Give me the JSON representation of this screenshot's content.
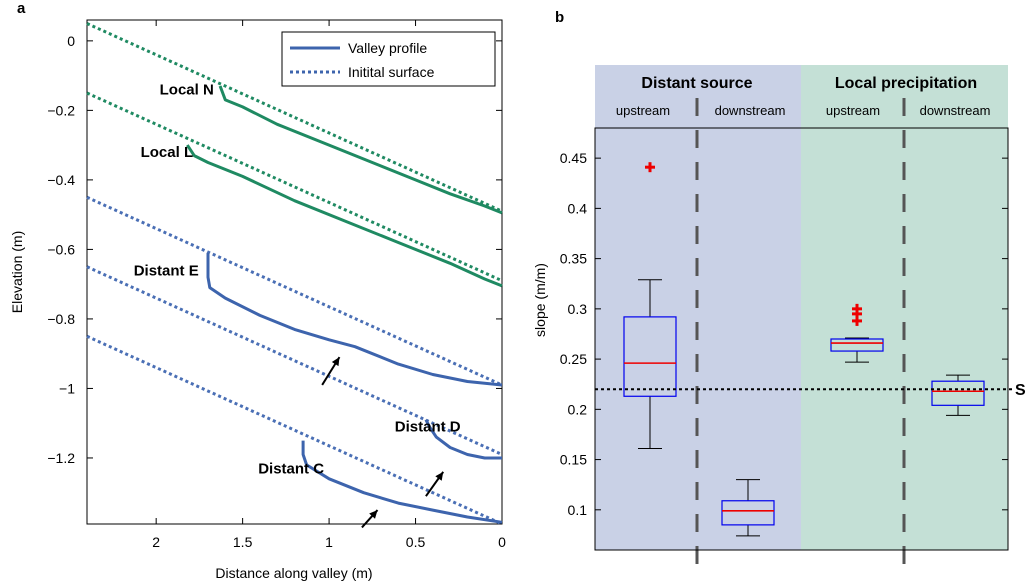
{
  "chart_data": [
    {
      "panel": "a",
      "type": "line",
      "xlabel": "Distance along valley (m)",
      "ylabel": "Elevation (m)",
      "xlim": [
        2.4,
        0
      ],
      "ylim": [
        -1.39,
        0.06
      ],
      "x_reversed": true,
      "xticks": [
        2,
        1.5,
        1,
        0.5,
        0
      ],
      "xtick_labels": [
        "2",
        "1.5",
        "1",
        "0.5",
        "0"
      ],
      "yticks": [
        0,
        -0.2,
        -0.4,
        -0.6,
        -0.8,
        -1,
        -1.2
      ],
      "ytick_labels": [
        "0",
        "−0.2",
        "−0.4",
        "−0.6",
        "−0.8",
        "−1",
        "−1.2"
      ],
      "legend": {
        "placement": "top-right",
        "entries": [
          {
            "label": "Valley profile",
            "style": "solid"
          },
          {
            "label": "Initital surface",
            "style": "dotted"
          }
        ]
      },
      "series": [
        {
          "name": "Local N",
          "kind": "initial",
          "color": "#1f8a62",
          "x": [
            2.4,
            0
          ],
          "y": [
            0.05,
            -0.49
          ]
        },
        {
          "name": "Local N",
          "kind": "profile",
          "color": "#1f8a62",
          "x": [
            1.63,
            1.6,
            1.5,
            1.3,
            1.0,
            0.7,
            0.5,
            0.3,
            0.1,
            0
          ],
          "y": [
            -0.13,
            -0.17,
            -0.19,
            -0.24,
            -0.3,
            -0.36,
            -0.4,
            -0.44,
            -0.475,
            -0.495
          ]
        },
        {
          "name": "Local L",
          "kind": "initial",
          "color": "#1f8a62",
          "x": [
            2.4,
            0
          ],
          "y": [
            -0.15,
            -0.69
          ]
        },
        {
          "name": "Local L",
          "kind": "profile",
          "color": "#1f8a62",
          "x": [
            1.82,
            1.78,
            1.7,
            1.5,
            1.2,
            0.9,
            0.6,
            0.3,
            0.1,
            0
          ],
          "y": [
            -0.3,
            -0.33,
            -0.35,
            -0.39,
            -0.46,
            -0.52,
            -0.58,
            -0.64,
            -0.685,
            -0.705
          ]
        },
        {
          "name": "Distant E",
          "kind": "initial",
          "color": "#4a6fb5",
          "x": [
            2.4,
            0
          ],
          "y": [
            -0.45,
            -0.99
          ]
        },
        {
          "name": "Distant E",
          "kind": "profile",
          "color": "#3d64ad",
          "x": [
            1.7,
            1.7,
            1.69,
            1.6,
            1.4,
            1.2,
            1.0,
            0.85,
            0.8,
            0.6,
            0.4,
            0.2,
            0
          ],
          "y": [
            -0.61,
            -0.68,
            -0.71,
            -0.74,
            -0.79,
            -0.83,
            -0.86,
            -0.88,
            -0.89,
            -0.93,
            -0.96,
            -0.98,
            -0.99
          ]
        },
        {
          "name": "Distant D",
          "kind": "initial",
          "color": "#4a6fb5",
          "x": [
            2.4,
            0
          ],
          "y": [
            -0.65,
            -1.19
          ]
        },
        {
          "name": "Distant D",
          "kind": "profile",
          "color": "#3d64ad",
          "x": [
            0.44,
            0.42,
            0.38,
            0.3,
            0.2,
            0.1,
            0
          ],
          "y": [
            -1.09,
            -1.11,
            -1.14,
            -1.17,
            -1.19,
            -1.2,
            -1.2
          ]
        },
        {
          "name": "Distant C",
          "kind": "initial",
          "color": "#4a6fb5",
          "x": [
            2.4,
            0
          ],
          "y": [
            -0.85,
            -1.39
          ]
        },
        {
          "name": "Distant C",
          "kind": "profile",
          "color": "#3d64ad",
          "x": [
            1.15,
            1.15,
            1.13,
            1.0,
            0.8,
            0.6,
            0.4,
            0.2,
            0
          ],
          "y": [
            -1.15,
            -1.19,
            -1.22,
            -1.26,
            -1.3,
            -1.33,
            -1.35,
            -1.37,
            -1.385
          ]
        }
      ],
      "curve_labels": [
        {
          "text": "Local N",
          "x": 1.98,
          "y": -0.14
        },
        {
          "text": "Local L",
          "x": 2.09,
          "y": -0.32
        },
        {
          "text": "Distant E",
          "x": 2.13,
          "y": -0.66
        },
        {
          "text": "Distant D",
          "x": 0.62,
          "y": -1.11
        },
        {
          "text": "Distant C",
          "x": 1.41,
          "y": -1.23
        }
      ],
      "arrows": [
        {
          "x1": 1.04,
          "y1": -0.99,
          "x2": 0.94,
          "y2": -0.91
        },
        {
          "x1": 0.44,
          "y1": -1.31,
          "x2": 0.34,
          "y2": -1.24
        },
        {
          "x1": 0.81,
          "y1": -1.4,
          "x2": 0.72,
          "y2": -1.35
        }
      ]
    },
    {
      "panel": "b",
      "type": "box",
      "ylabel": "slope (m/m)",
      "ylim": [
        0.06,
        0.48
      ],
      "yticks": [
        0.1,
        0.15,
        0.2,
        0.25,
        0.3,
        0.35,
        0.4,
        0.45
      ],
      "ytick_labels": [
        "0.1",
        "0.15",
        "0.2",
        "0.25",
        "0.3",
        "0.35",
        "0.4",
        "0.45"
      ],
      "groups": [
        {
          "title": "Distant source",
          "color": "#c9d1e6",
          "sublabels": [
            "upstream",
            "downstream"
          ]
        },
        {
          "title": "Local precipitation",
          "color": "#c4e0d6",
          "sublabels": [
            "upstream",
            "downstream"
          ]
        }
      ],
      "boxes": [
        {
          "group": "Distant source",
          "position": "upstream",
          "whisker_low": 0.161,
          "q1": 0.213,
          "median": 0.246,
          "q3": 0.292,
          "whisker_high": 0.329,
          "outliers": [
            0.441
          ]
        },
        {
          "group": "Distant source",
          "position": "downstream",
          "whisker_low": 0.074,
          "q1": 0.085,
          "median": 0.099,
          "q3": 0.109,
          "whisker_high": 0.13,
          "outliers": []
        },
        {
          "group": "Local precipitation",
          "position": "upstream",
          "whisker_low": 0.247,
          "q1": 0.258,
          "median": 0.266,
          "q3": 0.27,
          "whisker_high": 0.271,
          "outliers": [
            0.3,
            0.295,
            0.288
          ]
        },
        {
          "group": "Local precipitation",
          "position": "downstream",
          "whisker_low": 0.194,
          "q1": 0.204,
          "median": 0.218,
          "q3": 0.228,
          "whisker_high": 0.234,
          "outliers": []
        }
      ],
      "reference_line": {
        "value": 0.22,
        "label": "S"
      }
    }
  ],
  "colors": {
    "box_edge": "#0000ee",
    "median": "#ee0000",
    "outlier": "#ee0000",
    "divider": "#555555"
  }
}
